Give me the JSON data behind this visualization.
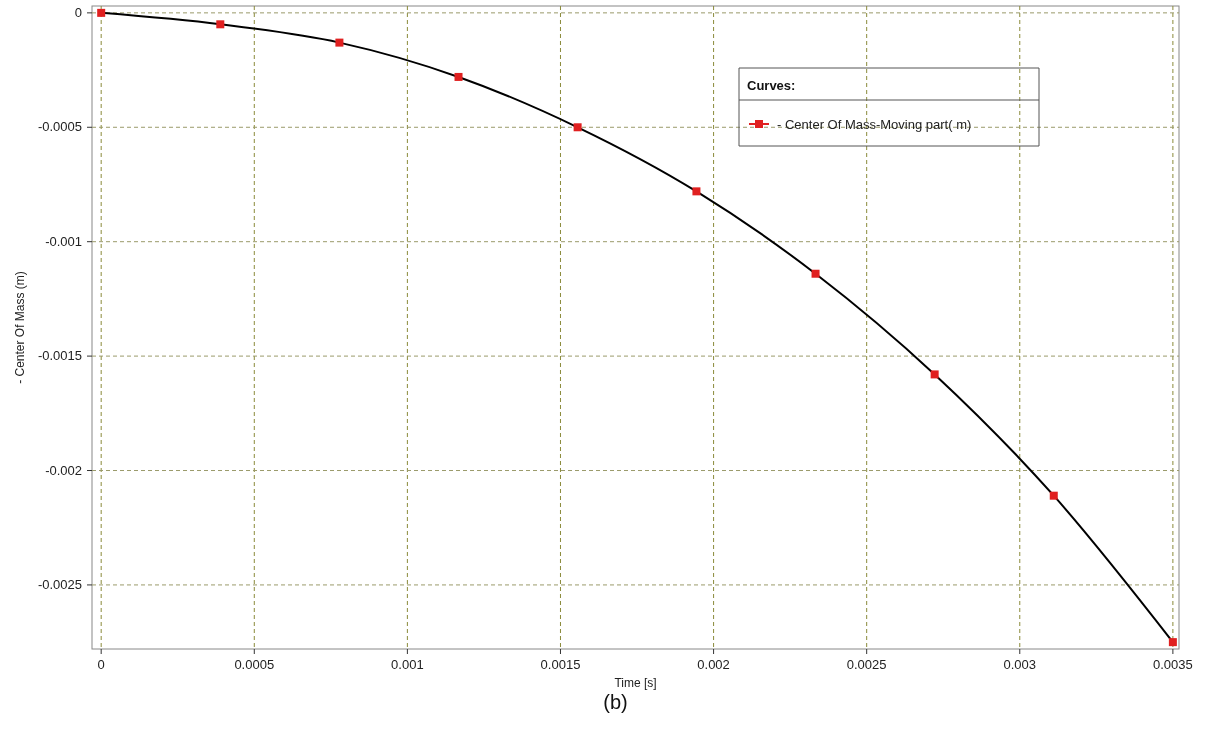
{
  "chart_data": {
    "type": "line",
    "xlabel": "Time [s]",
    "ylabel": "- Center Of Mass (m)",
    "legend_title": "Curves:",
    "legend": "top right",
    "grid": true,
    "marker": "square",
    "line_style": "solid",
    "x": [
      0,
      0.000389,
      0.000778,
      0.001167,
      0.001556,
      0.001944,
      0.002333,
      0.002722,
      0.003111,
      0.0035
    ],
    "series": [
      {
        "name": "- Center Of Mass-Moving part( m)",
        "color": "#000000",
        "colors": [
          "#e02020",
          "#e02020",
          "#e02020",
          "#e02020",
          "#e02020",
          "#e02020",
          "#e02020",
          "#e02020",
          "#e02020",
          "#e02020"
        ],
        "values": [
          0,
          -5e-05,
          -0.00013,
          -0.00028,
          -0.0005,
          -0.00078,
          -0.00114,
          -0.00158,
          -0.00211,
          -0.00275
        ]
      }
    ],
    "xlim": [
      -3e-05,
      0.00352
    ],
    "ylim": [
      -0.00278,
      3e-05
    ],
    "xticks": [
      0,
      0.0005,
      0.001,
      0.0015,
      0.002,
      0.0025,
      0.003,
      0.0035
    ],
    "yticks": [
      0,
      -0.0005,
      -0.001,
      -0.0015,
      -0.002,
      -0.0025
    ],
    "annotations": [
      "(b)"
    ]
  }
}
